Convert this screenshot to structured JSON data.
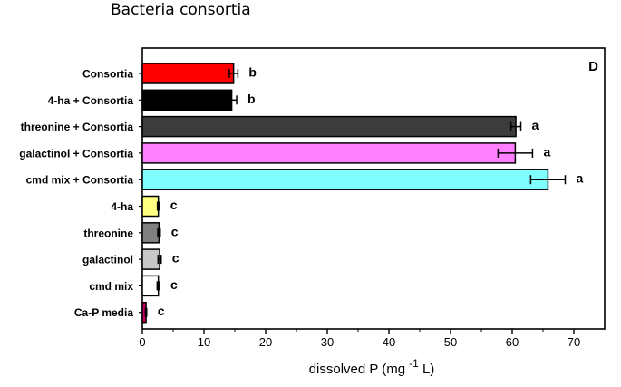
{
  "header": {
    "title": "Bacteria consortia"
  },
  "chart_data": {
    "type": "bar",
    "orientation": "horizontal",
    "panel_label": "D",
    "xlabel": {
      "prefix": "dissolved P (mg",
      "superscript": "-1",
      "suffix": " L)"
    },
    "ylabel": "",
    "xlim": [
      0,
      75
    ],
    "xticks": [
      0,
      10,
      20,
      30,
      40,
      50,
      60,
      70
    ],
    "grid": false,
    "categories": [
      "Consortia",
      "4-ha + Consortia",
      "threonine + Consortia",
      "galactinol + Consortia",
      "cmd mix + Consortia",
      "4-ha",
      "threonine",
      "galactinol",
      "cmd mix",
      "Ca-P media"
    ],
    "values": [
      14.8,
      14.5,
      60.6,
      60.5,
      65.8,
      2.6,
      2.7,
      2.8,
      2.6,
      0.6
    ],
    "errors": [
      0.7,
      0.8,
      0.8,
      2.8,
      2.8,
      0.15,
      0.2,
      0.25,
      0.2,
      0.1
    ],
    "letters": [
      "b",
      "b",
      "a",
      "a",
      "a",
      "c",
      "c",
      "c",
      "c",
      "c"
    ],
    "colors": [
      "#ff0000",
      "#000000",
      "#3c3c3c",
      "#ff80ff",
      "#80ffff",
      "#ffff80",
      "#808080",
      "#c8c8c8",
      "#ffffff",
      "#cc0066"
    ]
  }
}
